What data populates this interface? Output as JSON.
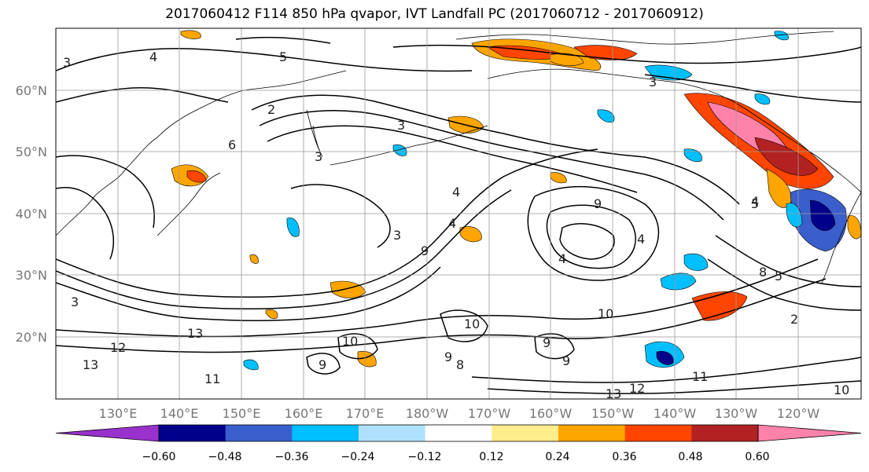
{
  "title": "2017060412 F114 850 hPa qvapor, IVT Landfall PC (2017060712 - 2017060912)",
  "map": {
    "lon_labels": [
      "130°E",
      "140°E",
      "150°E",
      "160°E",
      "170°E",
      "180°W",
      "170°W",
      "160°W",
      "150°W",
      "140°W",
      "130°W",
      "120°W"
    ],
    "lat_labels": [
      "60°N",
      "50°N",
      "40°N",
      "30°N",
      "20°N"
    ],
    "contour_labels": [
      "3",
      "4",
      "5",
      "3",
      "4",
      "2",
      "3",
      "6",
      "3",
      "3",
      "3",
      "4",
      "4",
      "5",
      "9",
      "4",
      "9",
      "10",
      "11",
      "10",
      "10",
      "9",
      "9",
      "13",
      "12",
      "13",
      "11",
      "12",
      "13",
      "10",
      "2",
      "8",
      "5",
      "4",
      "9",
      "9",
      "8"
    ]
  },
  "colorbar": {
    "tick_labels": [
      "−0.60",
      "−0.48",
      "−0.36",
      "−0.24",
      "−0.12",
      "0.12",
      "0.24",
      "0.36",
      "0.48",
      "0.60"
    ],
    "colors": [
      "#9932cc",
      "#00008b",
      "#3a5fcd",
      "#00bfff",
      "#b0e2ff",
      "#ffffff",
      "#ffec8b",
      "#ffa500",
      "#ff4500",
      "#b22222",
      "#ff82ab"
    ]
  }
}
